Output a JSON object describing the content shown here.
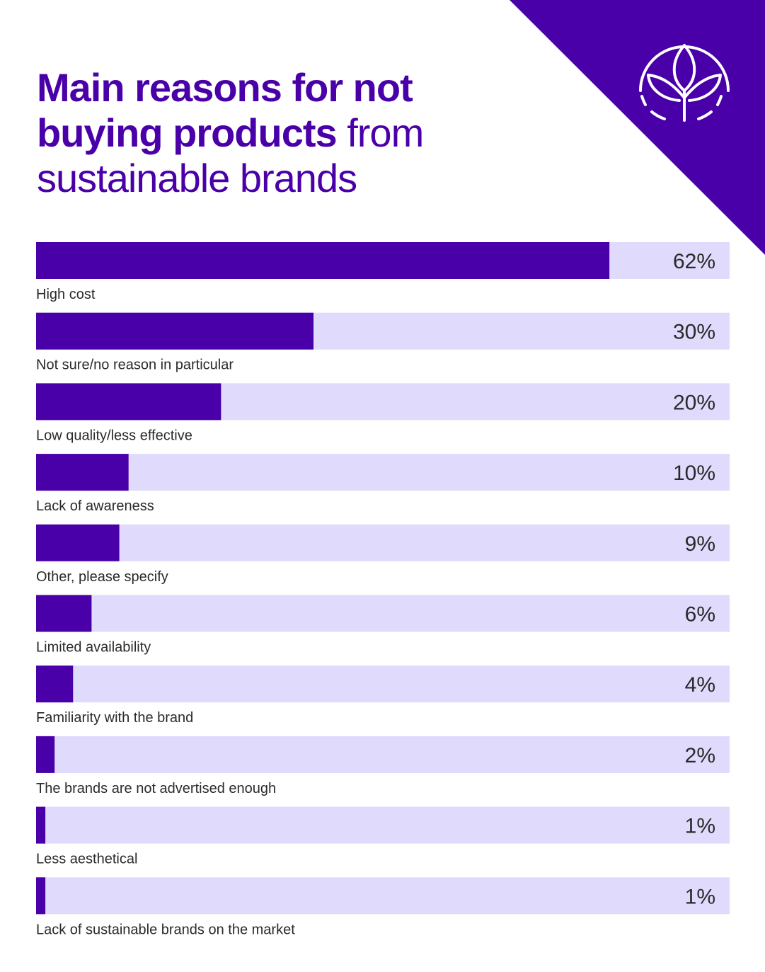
{
  "title": {
    "bold_part": "Main reasons for not buying products",
    "light_part": "from sustainable brands"
  },
  "colors": {
    "primary": "#4a00a8",
    "track": "#e0dafc",
    "text": "#2a2a2a",
    "background": "#ffffff"
  },
  "icon": "leaf-sprout-icon",
  "chart_data": {
    "type": "bar",
    "orientation": "horizontal",
    "title": "Main reasons for not buying products from sustainable brands",
    "categories": [
      "High cost",
      "Not sure/no reason in particular",
      "Low quality/less effective",
      "Lack of awareness",
      "Other, please specify",
      "Limited availability",
      "Familiarity with the brand",
      "The brands are not advertised enough",
      "Less aesthetical",
      "Lack of sustainable brands on the market"
    ],
    "values": [
      62,
      30,
      20,
      10,
      9,
      6,
      4,
      2,
      1,
      1
    ],
    "value_labels": [
      "62%",
      "30%",
      "20%",
      "10%",
      "9%",
      "6%",
      "4%",
      "2%",
      "1%",
      "1%"
    ],
    "unit": "%",
    "xlim": [
      0,
      75
    ],
    "grid": false,
    "legend": "none"
  }
}
